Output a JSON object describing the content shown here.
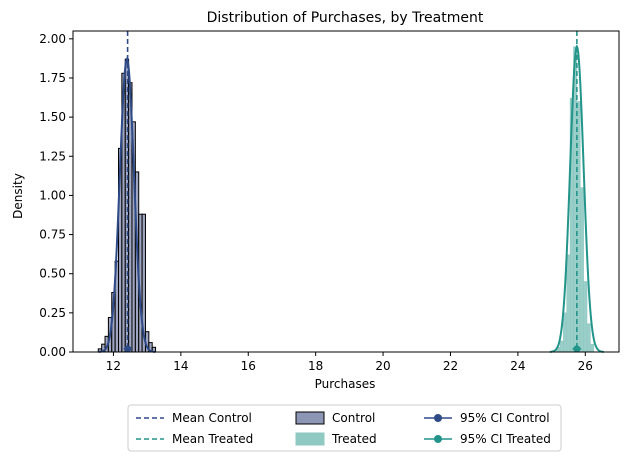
{
  "chart_data": {
    "type": "histogram",
    "title": "Distribution of Purchases, by Treatment",
    "xlabel": "Purchases",
    "ylabel": "Density",
    "xlim": [
      10.8,
      27.0
    ],
    "ylim": [
      0,
      2.05
    ],
    "x_ticks": [
      "12",
      "14",
      "16",
      "18",
      "20",
      "22",
      "24",
      "26"
    ],
    "y_ticks": [
      "0.00",
      "0.25",
      "0.50",
      "0.75",
      "1.00",
      "1.25",
      "1.50",
      "1.75",
      "2.00"
    ],
    "grid": false,
    "legend_position": "bottom",
    "series": [
      {
        "name": "Control",
        "kind": "histogram",
        "bins": [
          {
            "x0": 11.55,
            "x1": 11.65,
            "density": 0.02
          },
          {
            "x0": 11.65,
            "x1": 11.75,
            "density": 0.05
          },
          {
            "x0": 11.75,
            "x1": 11.85,
            "density": 0.1
          },
          {
            "x0": 11.85,
            "x1": 11.95,
            "density": 0.22
          },
          {
            "x0": 11.95,
            "x1": 12.05,
            "density": 0.38
          },
          {
            "x0": 12.05,
            "x1": 12.15,
            "density": 0.58
          },
          {
            "x0": 12.15,
            "x1": 12.25,
            "density": 1.3
          },
          {
            "x0": 12.25,
            "x1": 12.35,
            "density": 1.78
          },
          {
            "x0": 12.35,
            "x1": 12.45,
            "density": 1.87
          },
          {
            "x0": 12.45,
            "x1": 12.55,
            "density": 1.72
          },
          {
            "x0": 12.55,
            "x1": 12.65,
            "density": 1.47
          },
          {
            "x0": 12.65,
            "x1": 12.75,
            "density": 1.15
          },
          {
            "x0": 12.75,
            "x1": 12.85,
            "density": 0.88
          },
          {
            "x0": 12.85,
            "x1": 12.95,
            "density": 0.88
          },
          {
            "x0": 12.95,
            "x1": 13.05,
            "density": 0.13
          },
          {
            "x0": 13.05,
            "x1": 13.15,
            "density": 0.06
          },
          {
            "x0": 13.15,
            "x1": 13.25,
            "density": 0.03
          }
        ],
        "kde_mean": 12.4,
        "kde_sd": 0.21,
        "color": "#2e4a87",
        "fill": "#8e96b6"
      },
      {
        "name": "Treated",
        "kind": "histogram",
        "bins": [
          {
            "x0": 25.15,
            "x1": 25.25,
            "density": 0.03
          },
          {
            "x0": 25.25,
            "x1": 25.35,
            "density": 0.07
          },
          {
            "x0": 25.35,
            "x1": 25.45,
            "density": 0.25
          },
          {
            "x0": 25.45,
            "x1": 25.55,
            "density": 0.62
          },
          {
            "x0": 25.55,
            "x1": 25.65,
            "density": 1.62
          },
          {
            "x0": 25.65,
            "x1": 25.75,
            "density": 1.95
          },
          {
            "x0": 25.75,
            "x1": 25.85,
            "density": 1.6
          },
          {
            "x0": 25.85,
            "x1": 25.95,
            "density": 1.05
          },
          {
            "x0": 25.95,
            "x1": 26.05,
            "density": 0.45
          },
          {
            "x0": 26.05,
            "x1": 26.15,
            "density": 0.18
          },
          {
            "x0": 26.15,
            "x1": 26.25,
            "density": 0.05
          }
        ],
        "kde_mean": 25.75,
        "kde_sd": 0.2,
        "color": "#22948a",
        "fill": "#8fc9c2"
      }
    ],
    "mean_lines": [
      {
        "name": "Mean Control",
        "x": 12.42,
        "color": "#2e4a87",
        "style": "dashed"
      },
      {
        "name": "Mean Treated",
        "x": 25.75,
        "color": "#22948a",
        "style": "dashed"
      }
    ],
    "confidence_intervals": [
      {
        "name": "95% CI Control",
        "low": 12.3,
        "high": 12.55,
        "y": 0.02,
        "color": "#2e4a87"
      },
      {
        "name": "95% CI Treated",
        "low": 25.62,
        "high": 25.88,
        "y": 0.02,
        "color": "#22948a"
      }
    ],
    "legend": [
      {
        "label": "Mean Control",
        "kind": "dashed",
        "color": "#2e4a87"
      },
      {
        "label": "Mean Treated",
        "kind": "dashed",
        "color": "#22948a"
      },
      {
        "label": "Control",
        "kind": "patch",
        "color": "#8e96b6",
        "edge": "#000000"
      },
      {
        "label": "Treated",
        "kind": "patch",
        "color": "#8fc9c2",
        "edge": "#8fc9c2"
      },
      {
        "label": "95% CI Control",
        "kind": "errorbar",
        "color": "#2e4a87"
      },
      {
        "label": "95% CI Treated",
        "kind": "errorbar",
        "color": "#22948a"
      }
    ]
  }
}
